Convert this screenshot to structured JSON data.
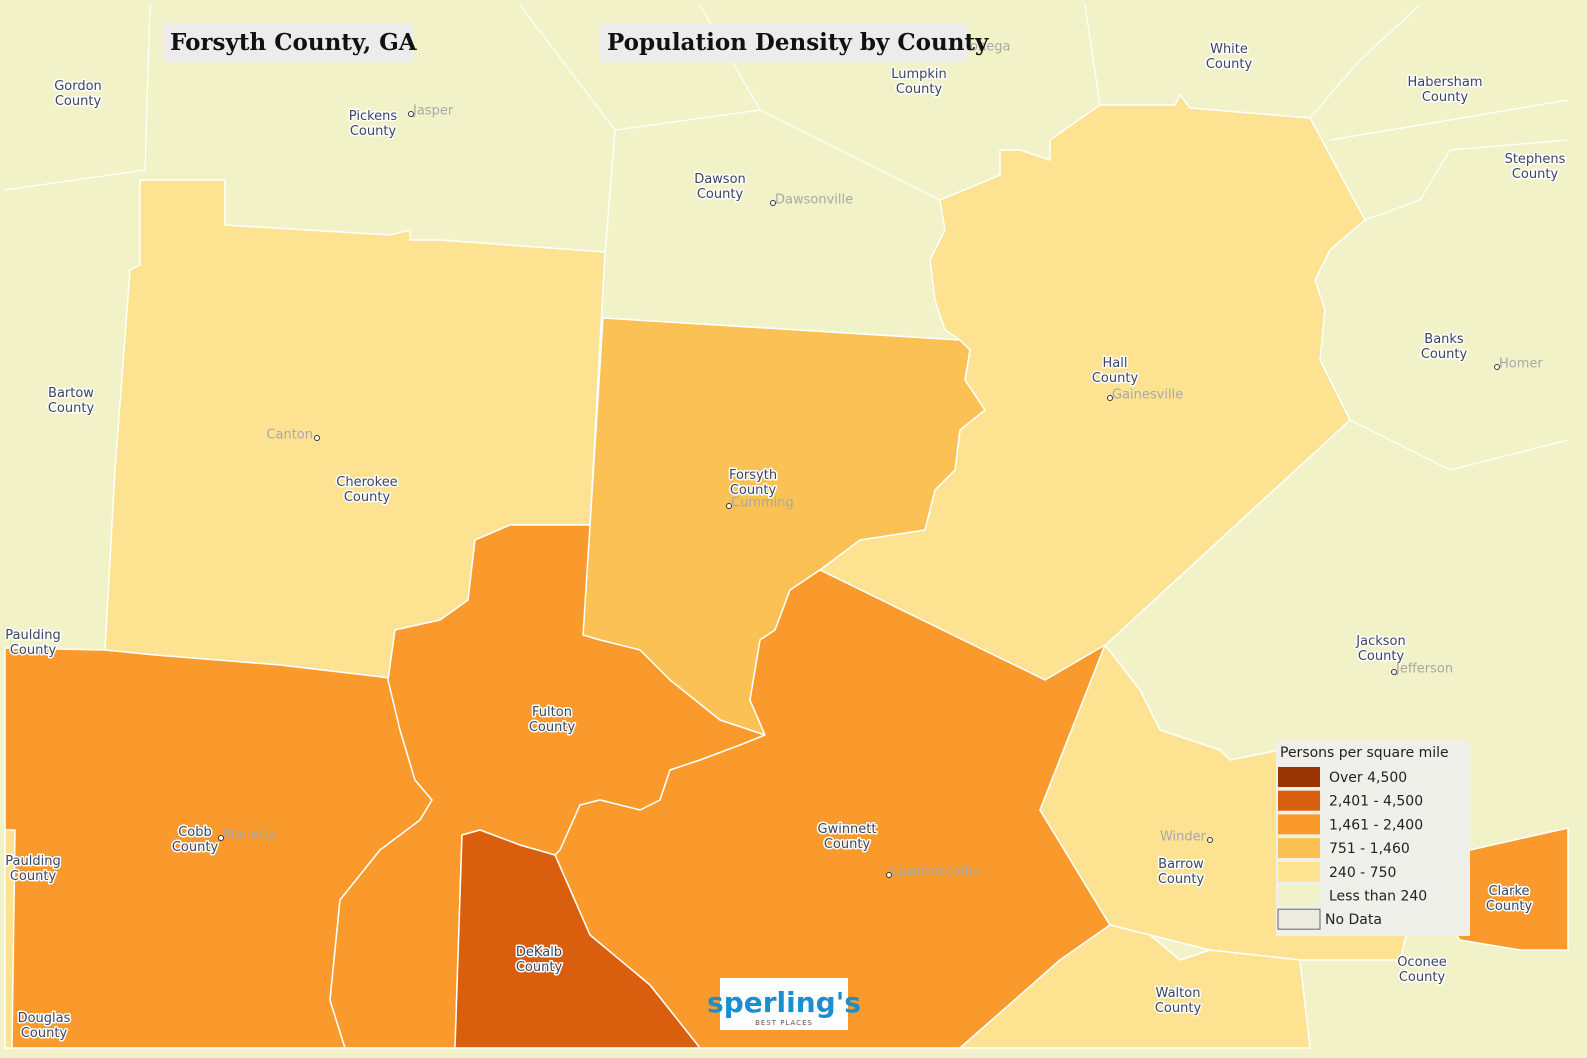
{
  "header": {
    "title": "Forsyth County, GA",
    "subtitle": "Population Density by County"
  },
  "counties": [
    {
      "label": [
        "Gordon",
        "County"
      ]
    },
    {
      "label": [
        "Pickens",
        "County"
      ]
    },
    {
      "label": [
        "Lumpkin",
        "County"
      ]
    },
    {
      "label": [
        "White",
        "County"
      ]
    },
    {
      "label": [
        "Habersham",
        "County"
      ]
    },
    {
      "label": [
        "Stephens",
        "County"
      ]
    },
    {
      "label": [
        "Dawson",
        "County"
      ]
    },
    {
      "label": [
        "Bartow",
        "County"
      ]
    },
    {
      "label": [
        "Banks",
        "County"
      ]
    },
    {
      "label": [
        "Hall",
        "County"
      ]
    },
    {
      "label": [
        "Forsyth",
        "County"
      ]
    },
    {
      "label": [
        "Cherokee",
        "County"
      ]
    },
    {
      "label": [
        "Paulding",
        "County"
      ]
    },
    {
      "label": [
        "Jackson",
        "County"
      ]
    },
    {
      "label": [
        "Fulton",
        "County"
      ]
    },
    {
      "label": [
        "Gwinnett",
        "County"
      ]
    },
    {
      "label": [
        "Cobb",
        "County"
      ]
    },
    {
      "label": [
        "Paulding",
        "County"
      ]
    },
    {
      "label": [
        "Barrow",
        "County"
      ]
    },
    {
      "label": [
        "Clarke",
        "County"
      ]
    },
    {
      "label": [
        "DeKalb",
        "County"
      ]
    },
    {
      "label": [
        "Oconee",
        "County"
      ]
    },
    {
      "label": [
        "Walton",
        "County"
      ]
    },
    {
      "label": [
        "Douglas",
        "County"
      ]
    }
  ],
  "cities": [
    "onega",
    "Jasper",
    "Dawsonville",
    "Canton",
    "Cumming",
    "Gainesville",
    "Homer",
    "Jefferson",
    "Marietta",
    "Lawrenceville",
    "Winder"
  ],
  "legend": {
    "title": "Persons per square mile",
    "items": [
      {
        "label": "Over 4,500",
        "color": "#993404"
      },
      {
        "label": "2,401 - 4,500",
        "color": "#d95f0e"
      },
      {
        "label": "1,461 - 2,400",
        "color": "#fa9a2c"
      },
      {
        "label": "751 - 1,460",
        "color": "#fcc155"
      },
      {
        "label": "240 - 750",
        "color": "#fde292"
      },
      {
        "label": "Less than 240",
        "color": "#f2f2c9"
      },
      {
        "label": "No Data",
        "color": "#ebebe0"
      }
    ]
  },
  "logo": {
    "name": "sperling's",
    "tagline": "BEST PLACES"
  }
}
